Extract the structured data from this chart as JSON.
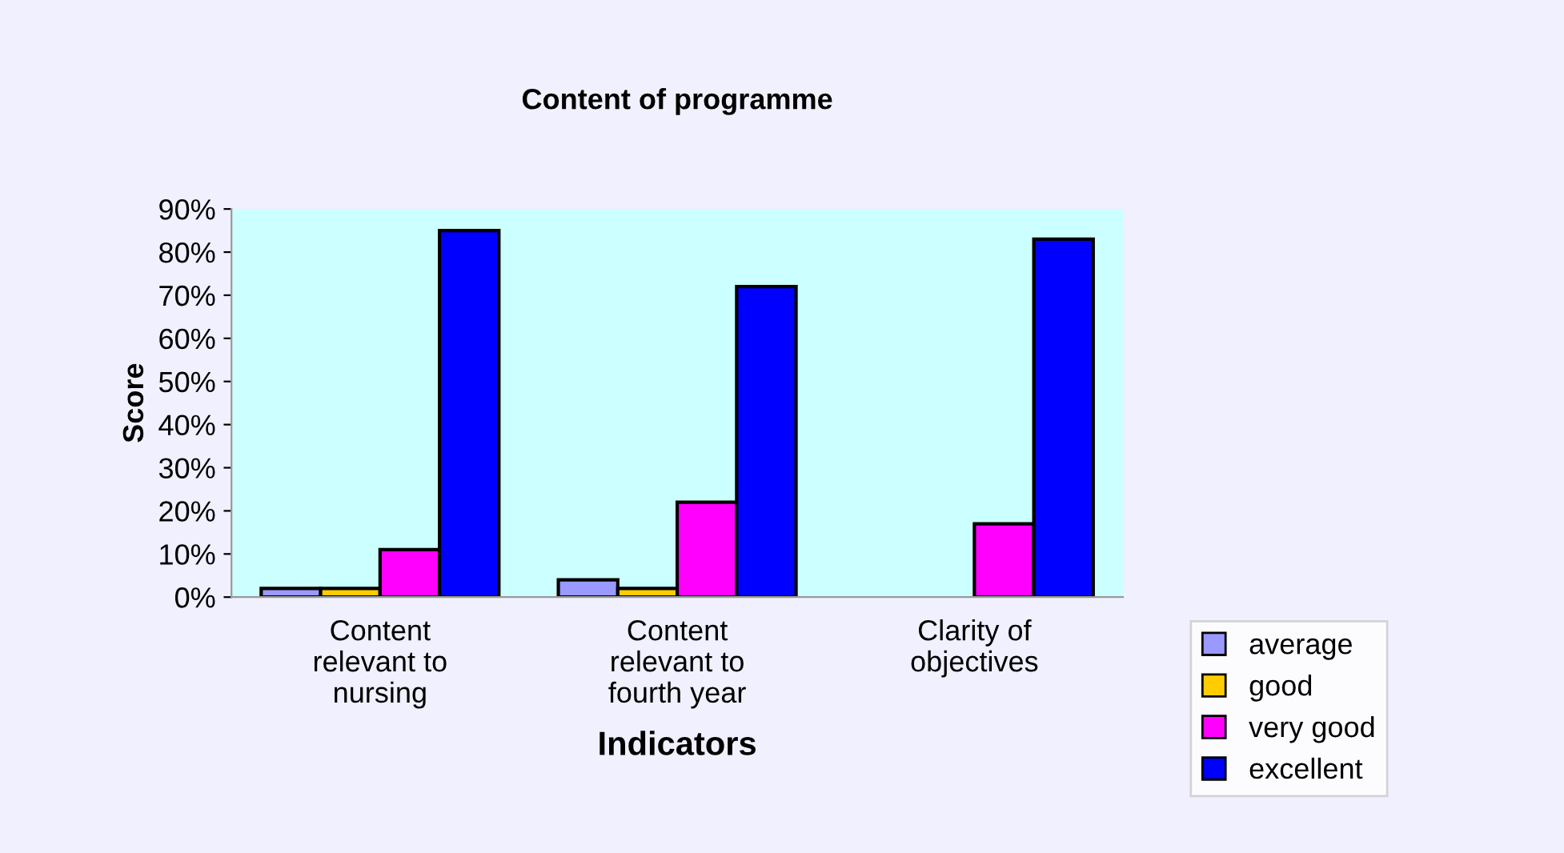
{
  "chart_data": {
    "type": "bar",
    "title": "Content of programme",
    "xlabel": "Indicators",
    "ylabel": "Score",
    "categories": [
      "Content\nrelevant to\nnursing",
      "Content\nrelevant to\nfourth year",
      "Clarity of\nobjectives"
    ],
    "series": [
      {
        "name": "average",
        "color": "#9999ff",
        "values": [
          2,
          4,
          0
        ]
      },
      {
        "name": "good",
        "color": "#ffcc00",
        "values": [
          2,
          2,
          0
        ]
      },
      {
        "name": "very good",
        "color": "#ff00ff",
        "values": [
          11,
          22,
          17
        ]
      },
      {
        "name": "excellent",
        "color": "#0000ff",
        "values": [
          85,
          72,
          83
        ]
      }
    ],
    "ylim": [
      0,
      90
    ],
    "yticks": [
      {
        "value": 0,
        "label": "0%"
      },
      {
        "value": 10,
        "label": "10%"
      },
      {
        "value": 20,
        "label": "20%"
      },
      {
        "value": 30,
        "label": "30%"
      },
      {
        "value": 40,
        "label": "40%"
      },
      {
        "value": 50,
        "label": "50%"
      },
      {
        "value": 60,
        "label": "60%"
      },
      {
        "value": 70,
        "label": "70%"
      },
      {
        "value": 80,
        "label": "80%"
      },
      {
        "value": 90,
        "label": "90%"
      }
    ],
    "grid": false,
    "legend": "bottom right"
  }
}
